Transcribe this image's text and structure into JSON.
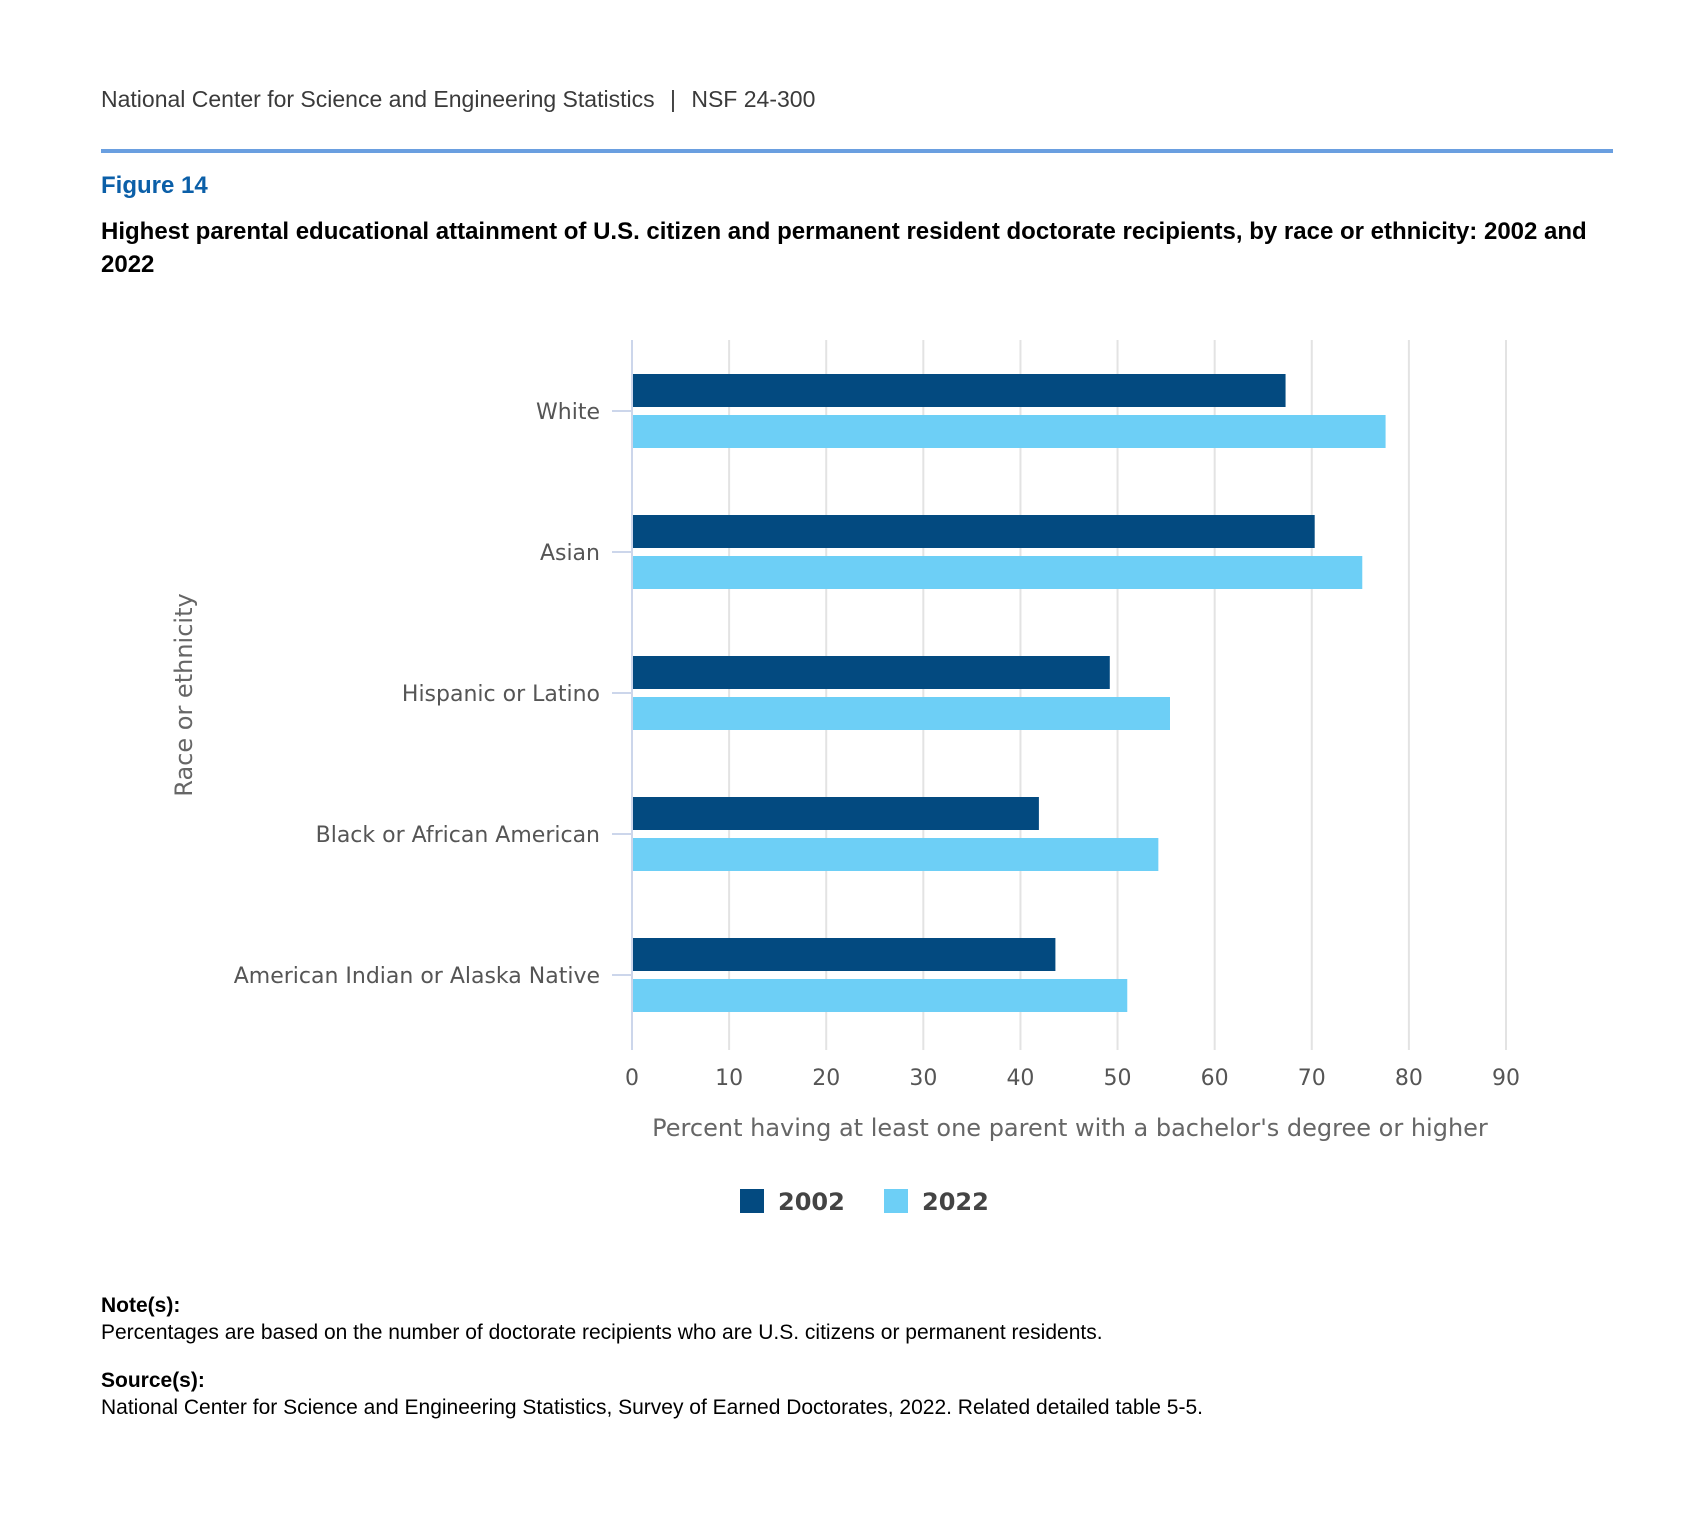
{
  "header": {
    "org": "National Center for Science and Engineering Statistics",
    "separator": "|",
    "report": "NSF 24-300"
  },
  "figure": {
    "label": "Figure 14",
    "title": "Highest parental educational attainment of U.S. citizen and permanent resident doctorate recipients, by race or ethnicity: 2002 and 2022"
  },
  "chart_data": {
    "type": "bar",
    "orientation": "horizontal",
    "categories": [
      "White",
      "Asian",
      "Hispanic or Latino",
      "Black or African American",
      "American Indian or Alaska Native"
    ],
    "series": [
      {
        "name": "2002",
        "values": [
          67.3,
          70.3,
          49.2,
          41.9,
          43.6
        ],
        "color": "#034a80"
      },
      {
        "name": "2022",
        "values": [
          77.6,
          75.2,
          55.4,
          54.2,
          51.0
        ],
        "color": "#6dcff6"
      }
    ],
    "xlabel": "Percent having at least one parent with a bachelor's degree or higher",
    "ylabel": "Race or ethnicity",
    "xlim": [
      0,
      90
    ],
    "xticks": [
      0,
      10,
      20,
      30,
      40,
      50,
      60,
      70,
      80,
      90
    ],
    "grid": true,
    "legend_position": "bottom-center"
  },
  "notes": {
    "note_heading": "Note(s):",
    "note_text": "Percentages are based on the number of doctorate recipients who are U.S. citizens or permanent residents.",
    "source_heading": "Source(s):",
    "source_text": "National Center for Science and Engineering Statistics, Survey of Earned Doctorates, 2022. Related detailed table 5-5."
  }
}
